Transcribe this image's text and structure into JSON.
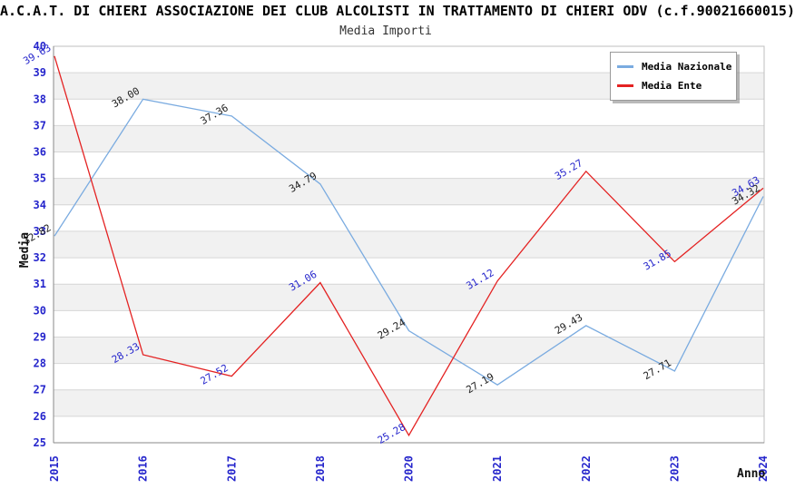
{
  "header": {
    "title_line": "A.C.A.T. DI CHIERI ASSOCIAZIONE DEI CLUB ALCOLISTI IN TRATTAMENTO DI CHIERI ODV (c.f.90021660015)"
  },
  "chart_data": {
    "type": "line",
    "title": "Media Importi",
    "xlabel": "Anno",
    "ylabel": "Media",
    "categories": [
      "2015",
      "2016",
      "2017",
      "2018",
      "2020",
      "2021",
      "2022",
      "2023",
      "2024"
    ],
    "series": [
      {
        "name": "Media Nazionale",
        "color": "#7aabe0",
        "label_color": "#222222",
        "values": [
          32.82,
          38.0,
          37.36,
          34.79,
          29.24,
          27.19,
          29.43,
          27.71,
          34.32
        ]
      },
      {
        "name": "Media Ente",
        "color": "#e42222",
        "label_color": "#2626cc",
        "values": [
          39.63,
          28.33,
          27.52,
          31.06,
          25.28,
          31.12,
          35.27,
          31.85,
          34.63
        ]
      }
    ],
    "ylim": [
      25,
      40
    ],
    "ytick_step": 1,
    "grid": true,
    "legend_position": "top-right",
    "colors": {
      "tick_label": "#2626cc",
      "band_gray": "#f1f1f1",
      "gridline": "#d6d6d6",
      "frame": "#bfbfbf",
      "axis": "#8a8a8a"
    },
    "label_format": "0.00"
  }
}
